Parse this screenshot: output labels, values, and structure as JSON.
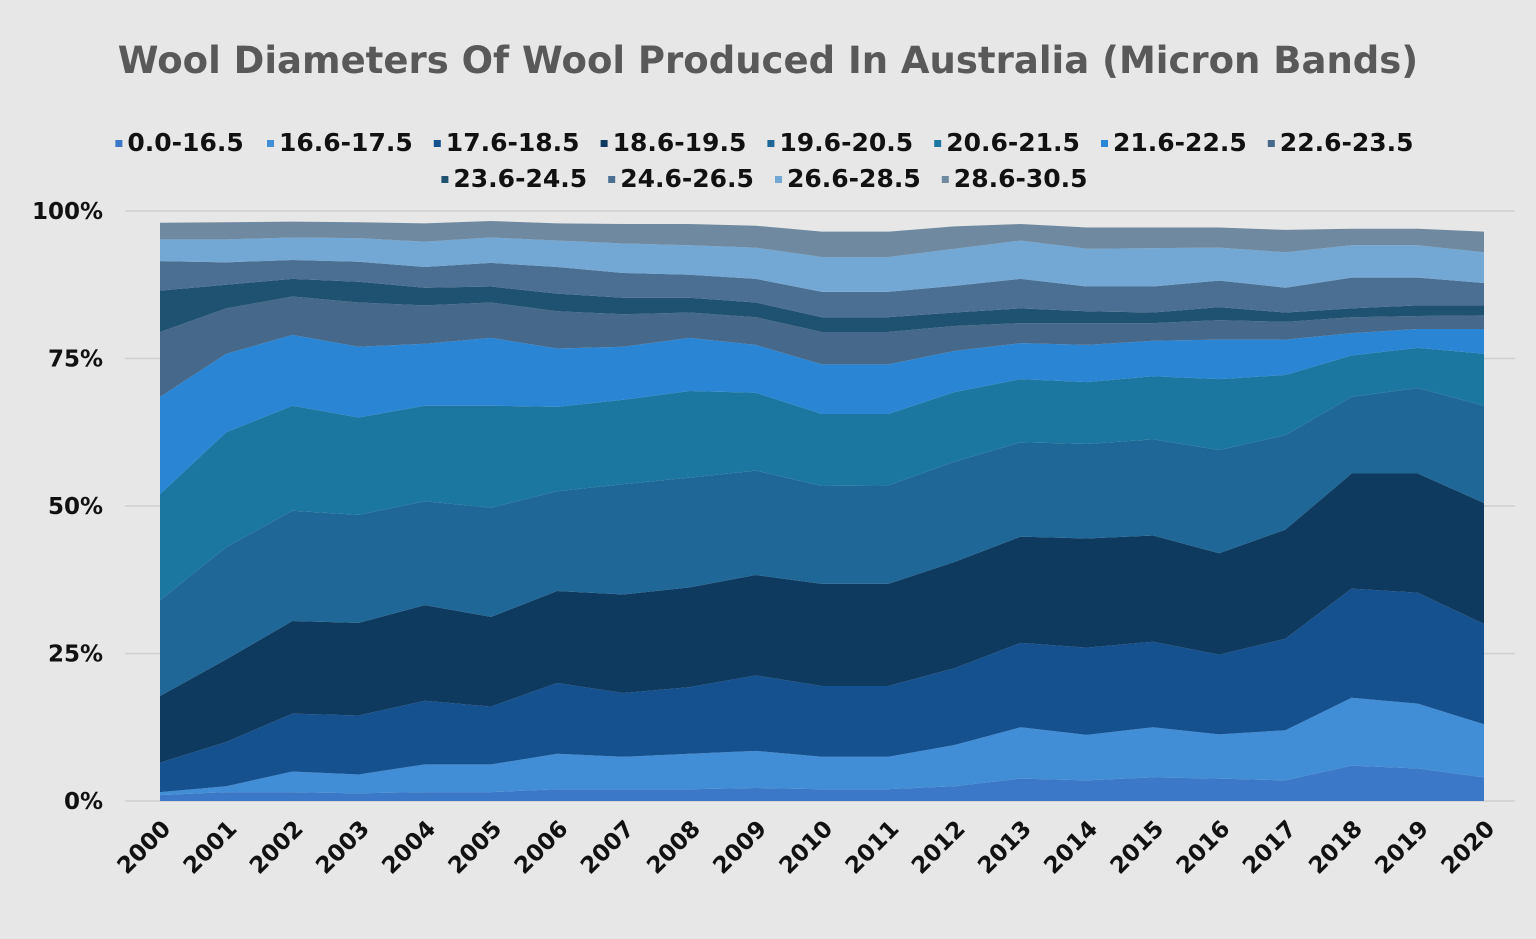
{
  "chart_data": {
    "type": "area",
    "stacked": true,
    "title": "Wool Diameters Of Wool Produced In Australia (Micron Bands)",
    "xlabel": "",
    "ylabel": "",
    "ylim": [
      0,
      100
    ],
    "y_ticks": [
      "0%",
      "25%",
      "50%",
      "75%",
      "100%"
    ],
    "grid": true,
    "legend_position": "top",
    "categories": [
      "2000",
      "2001",
      "2002",
      "2003",
      "2004",
      "2005",
      "2006",
      "2007",
      "2008",
      "2009",
      "2010",
      "2011",
      "2012",
      "2013",
      "2014",
      "2015",
      "2016",
      "2017",
      "2018",
      "2019",
      "2020"
    ],
    "series": [
      {
        "name": "0.0-16.5",
        "color": "#3b78c8",
        "values": [
          1.0,
          1.5,
          1.5,
          1.3,
          1.5,
          1.5,
          2.0,
          2.0,
          2.0,
          2.2,
          2.0,
          2.0,
          2.5,
          3.8,
          3.5,
          4.0,
          3.8,
          3.5,
          6.0,
          5.5,
          4.0
        ]
      },
      {
        "name": "16.6-17.5",
        "color": "#418dd6",
        "values": [
          0.5,
          1.0,
          3.5,
          3.2,
          4.7,
          4.7,
          6.0,
          5.5,
          6.0,
          6.3,
          5.5,
          5.5,
          7.0,
          8.7,
          7.7,
          8.5,
          7.5,
          8.5,
          11.5,
          11.0,
          9.0
        ]
      },
      {
        "name": "17.6-18.5",
        "color": "#15508f",
        "values": [
          5.0,
          7.5,
          9.8,
          10.0,
          10.8,
          9.8,
          12.0,
          10.8,
          11.3,
          12.8,
          12.0,
          12.0,
          13.0,
          14.3,
          14.8,
          14.5,
          13.5,
          15.5,
          18.5,
          18.8,
          17.0
        ]
      },
      {
        "name": "18.6-19.5",
        "color": "#0f3a5f",
        "values": [
          11.3,
          14.0,
          15.7,
          15.7,
          16.2,
          15.2,
          15.6,
          16.7,
          16.9,
          17.0,
          17.3,
          17.3,
          18.0,
          18.0,
          18.5,
          18.0,
          17.2,
          18.5,
          19.5,
          20.2,
          20.5
        ]
      },
      {
        "name": "19.6-20.5",
        "color": "#1f6796",
        "values": [
          16.2,
          19.0,
          18.7,
          18.3,
          17.6,
          18.5,
          16.9,
          18.7,
          18.6,
          17.7,
          16.6,
          16.7,
          17.0,
          16.0,
          16.0,
          16.3,
          17.5,
          16.0,
          13.0,
          14.5,
          16.5
        ]
      },
      {
        "name": "20.6-21.5",
        "color": "#1b77a0",
        "values": [
          18.0,
          19.5,
          17.8,
          16.5,
          16.2,
          17.3,
          14.3,
          14.3,
          14.7,
          13.2,
          12.2,
          12.1,
          11.8,
          10.7,
          10.5,
          10.7,
          12.0,
          10.2,
          7.0,
          6.8,
          8.8
        ]
      },
      {
        "name": "21.6-22.5",
        "color": "#2a86d4",
        "values": [
          16.5,
          13.3,
          12.0,
          12.0,
          10.5,
          11.5,
          9.9,
          9.0,
          9.0,
          8.1,
          8.4,
          8.4,
          7.0,
          6.1,
          6.3,
          6.0,
          6.7,
          6.0,
          3.8,
          3.2,
          4.2
        ]
      },
      {
        "name": "22.6-23.5",
        "color": "#46688a",
        "values": [
          11.0,
          7.7,
          6.5,
          7.5,
          6.5,
          6.0,
          6.3,
          5.5,
          4.3,
          4.7,
          5.5,
          5.5,
          4.2,
          3.4,
          3.7,
          3.0,
          3.3,
          3.0,
          2.7,
          2.2,
          2.3
        ]
      },
      {
        "name": "23.6-24.5",
        "color": "#1f5270",
        "values": [
          7.0,
          4.0,
          3.0,
          3.5,
          3.0,
          2.7,
          3.0,
          2.8,
          2.5,
          2.5,
          2.5,
          2.5,
          2.3,
          2.5,
          2.0,
          1.8,
          2.2,
          1.6,
          1.5,
          1.8,
          1.7
        ]
      },
      {
        "name": "24.6-26.5",
        "color": "#4b6f92",
        "values": [
          5.0,
          3.8,
          3.2,
          3.4,
          3.5,
          4.0,
          4.5,
          4.2,
          3.9,
          4.0,
          4.3,
          4.3,
          4.5,
          5.0,
          4.2,
          4.4,
          4.5,
          4.2,
          5.2,
          4.7,
          3.8
        ]
      },
      {
        "name": "26.6-28.5",
        "color": "#73a7d4",
        "values": [
          3.7,
          3.9,
          3.8,
          4.0,
          4.3,
          4.3,
          4.5,
          5.0,
          5.0,
          5.3,
          5.9,
          5.9,
          6.3,
          6.5,
          6.4,
          6.5,
          5.6,
          6.0,
          5.5,
          5.5,
          5.2
        ]
      },
      {
        "name": "28.6-30.5",
        "color": "#6f8aa0",
        "values": [
          2.8,
          2.9,
          2.7,
          2.7,
          3.1,
          2.8,
          2.9,
          3.3,
          3.6,
          3.7,
          4.3,
          4.3,
          3.8,
          2.8,
          3.6,
          3.5,
          3.4,
          3.8,
          2.8,
          2.8,
          3.5
        ]
      }
    ]
  }
}
